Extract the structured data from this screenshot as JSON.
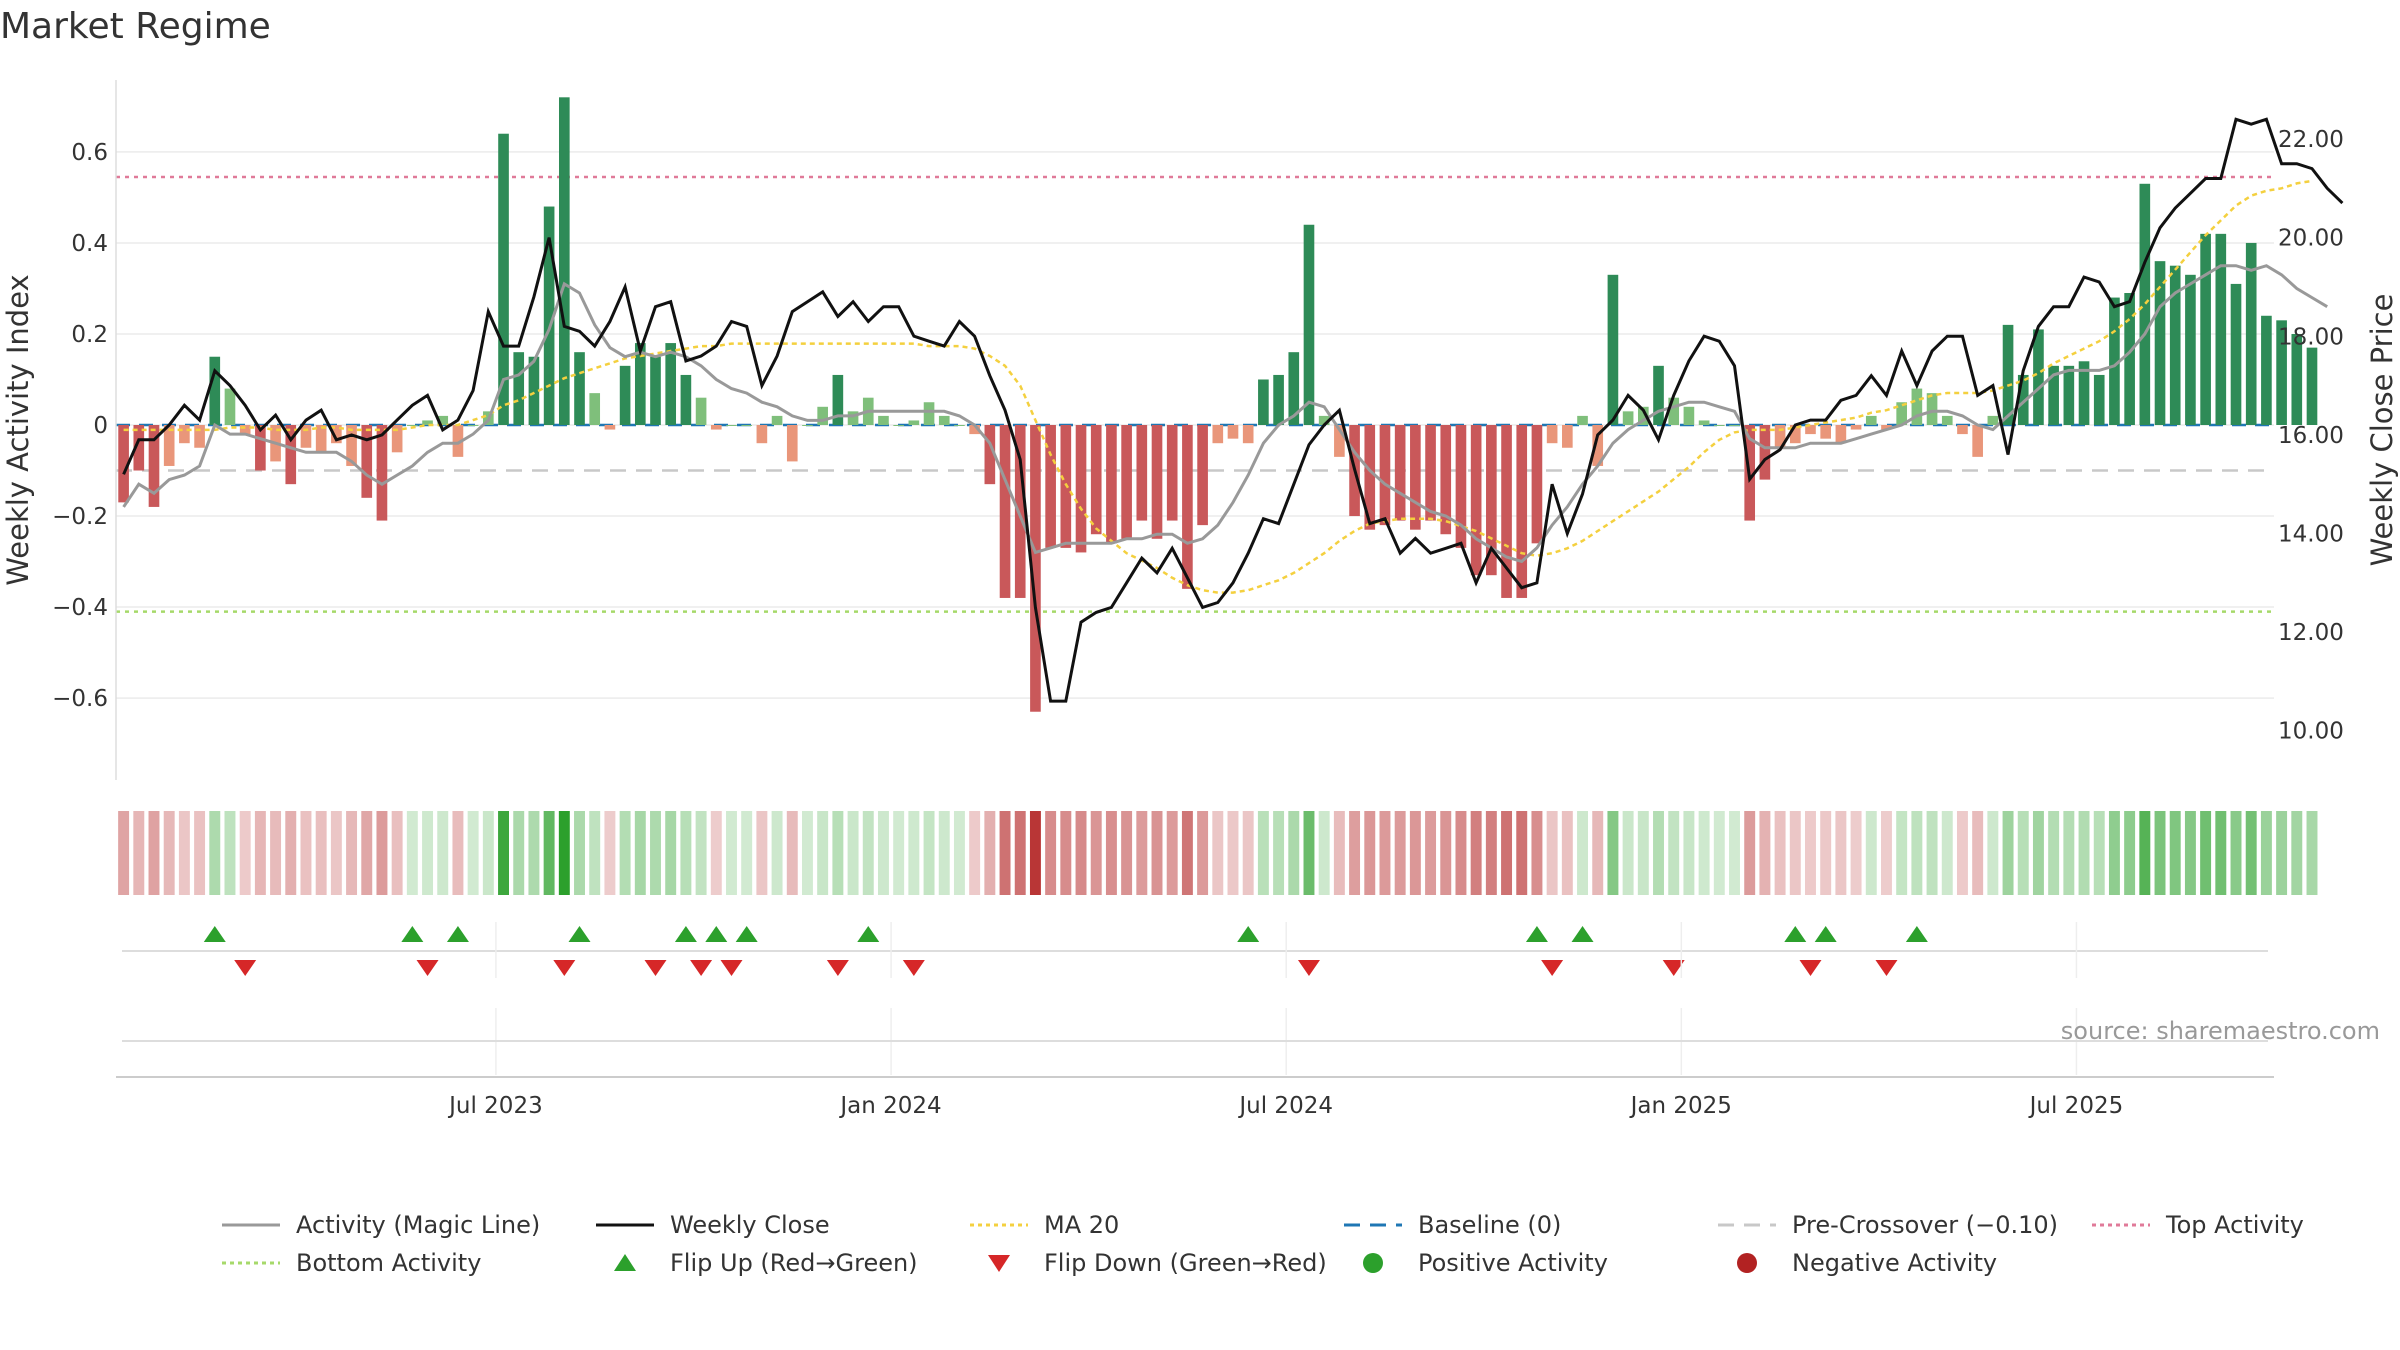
{
  "chart_data": {
    "type": "bar",
    "title": "Market Regime",
    "ylabel": "Weekly Activity Index",
    "y2label": "Weekly Close Price",
    "source": "source: sharemaestro.com",
    "ylim": [
      -0.78,
      0.78
    ],
    "y2lim": [
      9.0,
      23.4
    ],
    "y_ticks": [
      {
        "value": 0.6,
        "label": "0.6"
      },
      {
        "value": 0.4,
        "label": "0.4"
      },
      {
        "value": 0.2,
        "label": "0.2"
      },
      {
        "value": 0,
        "label": "0"
      },
      {
        "value": -0.2,
        "label": "−0.2"
      },
      {
        "value": -0.4,
        "label": "−0.4"
      },
      {
        "value": -0.6,
        "label": "−0.6"
      }
    ],
    "y2_ticks": [
      {
        "value": 22,
        "label": "22.00"
      },
      {
        "value": 20,
        "label": "20.00"
      },
      {
        "value": 18,
        "label": "18.00"
      },
      {
        "value": 16,
        "label": "16.00"
      },
      {
        "value": 14,
        "label": "14.00"
      },
      {
        "value": 12,
        "label": "12.00"
      },
      {
        "value": 10,
        "label": "10.00"
      }
    ],
    "x_ticks": [
      {
        "week": 25,
        "label": "Jul 2023"
      },
      {
        "week": 51,
        "label": "Jan 2024"
      },
      {
        "week": 77,
        "label": "Jul 2024"
      },
      {
        "week": 103,
        "label": "Jan 2025"
      },
      {
        "week": 129,
        "label": "Jul 2025"
      }
    ],
    "weeks_count": 142,
    "activity": [
      -0.17,
      -0.1,
      -0.18,
      -0.09,
      -0.04,
      -0.05,
      0.15,
      0.08,
      -0.02,
      -0.1,
      -0.08,
      -0.13,
      -0.05,
      -0.06,
      -0.04,
      -0.09,
      -0.16,
      -0.21,
      -0.06,
      0.0,
      0.01,
      0.02,
      -0.07,
      0.0,
      0.03,
      0.64,
      0.16,
      0.15,
      0.48,
      0.72,
      0.16,
      0.07,
      -0.01,
      0.13,
      0.18,
      0.15,
      0.18,
      0.11,
      0.06,
      -0.01,
      0.0,
      0.0,
      -0.04,
      0.02,
      -0.08,
      0.0,
      0.04,
      0.11,
      0.03,
      0.06,
      0.02,
      0.0,
      0.01,
      0.05,
      0.02,
      0.0,
      -0.02,
      -0.13,
      -0.38,
      -0.38,
      -0.63,
      -0.27,
      -0.27,
      -0.28,
      -0.24,
      -0.26,
      -0.25,
      -0.21,
      -0.25,
      -0.21,
      -0.36,
      -0.22,
      -0.04,
      -0.03,
      -0.04,
      0.1,
      0.11,
      0.16,
      0.44,
      0.02,
      -0.07,
      -0.2,
      -0.23,
      -0.22,
      -0.21,
      -0.23,
      -0.21,
      -0.24,
      -0.27,
      -0.33,
      -0.33,
      -0.38,
      -0.38,
      -0.26,
      -0.04,
      -0.05,
      0.02,
      -0.09,
      0.33,
      0.03,
      0.04,
      0.13,
      0.06,
      0.04,
      0.01,
      0.0,
      0.0,
      -0.21,
      -0.12,
      -0.05,
      -0.04,
      -0.02,
      -0.03,
      -0.04,
      -0.01,
      0.02,
      -0.01,
      0.05,
      0.08,
      0.07,
      0.02,
      -0.02,
      -0.07,
      0.02,
      0.22,
      0.11,
      0.21,
      0.13,
      0.13,
      0.14,
      0.11,
      0.28,
      0.29,
      0.53,
      0.36,
      0.35,
      0.33,
      0.42,
      0.42,
      0.31,
      0.4,
      0.24,
      0.23,
      0.2,
      0.17
    ],
    "magic_line": [
      -0.18,
      -0.13,
      -0.15,
      -0.12,
      -0.11,
      -0.09,
      0.0,
      -0.02,
      -0.02,
      -0.03,
      -0.04,
      -0.05,
      -0.06,
      -0.06,
      -0.06,
      -0.08,
      -0.11,
      -0.13,
      -0.11,
      -0.09,
      -0.06,
      -0.04,
      -0.04,
      -0.02,
      0.01,
      0.1,
      0.11,
      0.14,
      0.21,
      0.31,
      0.29,
      0.22,
      0.17,
      0.15,
      0.16,
      0.15,
      0.16,
      0.15,
      0.13,
      0.1,
      0.08,
      0.07,
      0.05,
      0.04,
      0.02,
      0.01,
      0.01,
      0.02,
      0.02,
      0.03,
      0.03,
      0.03,
      0.03,
      0.03,
      0.03,
      0.02,
      0.0,
      -0.04,
      -0.12,
      -0.2,
      -0.28,
      -0.27,
      -0.26,
      -0.26,
      -0.26,
      -0.26,
      -0.25,
      -0.25,
      -0.24,
      -0.24,
      -0.26,
      -0.25,
      -0.22,
      -0.17,
      -0.11,
      -0.04,
      0.0,
      0.02,
      0.05,
      0.04,
      -0.01,
      -0.06,
      -0.1,
      -0.13,
      -0.15,
      -0.17,
      -0.19,
      -0.2,
      -0.22,
      -0.25,
      -0.27,
      -0.29,
      -0.3,
      -0.27,
      -0.22,
      -0.18,
      -0.13,
      -0.09,
      -0.04,
      -0.01,
      0.01,
      0.03,
      0.04,
      0.05,
      0.05,
      0.04,
      0.03,
      -0.03,
      -0.05,
      -0.05,
      -0.05,
      -0.04,
      -0.04,
      -0.04,
      -0.03,
      -0.02,
      -0.01,
      0.0,
      0.02,
      0.03,
      0.03,
      0.02,
      0.0,
      -0.01,
      0.02,
      0.05,
      0.08,
      0.11,
      0.12,
      0.12,
      0.12,
      0.13,
      0.16,
      0.2,
      0.26,
      0.29,
      0.31,
      0.33,
      0.35,
      0.35,
      0.34,
      0.35,
      0.33,
      0.3,
      0.28,
      0.26
    ],
    "weekly_close": [
      15.2,
      15.9,
      15.9,
      16.2,
      16.6,
      16.3,
      17.3,
      17.0,
      16.6,
      16.1,
      16.4,
      15.9,
      16.3,
      16.5,
      15.9,
      16.0,
      15.9,
      16.0,
      16.3,
      16.6,
      16.8,
      16.1,
      16.3,
      16.9,
      18.5,
      17.8,
      17.8,
      18.8,
      20.0,
      18.2,
      18.1,
      17.8,
      18.3,
      19.0,
      17.7,
      18.6,
      18.7,
      17.5,
      17.6,
      17.8,
      18.3,
      18.2,
      17.0,
      17.6,
      18.5,
      18.7,
      18.9,
      18.4,
      18.7,
      18.3,
      18.6,
      18.6,
      18.0,
      17.9,
      17.8,
      18.3,
      18.0,
      17.2,
      16.5,
      15.5,
      12.5,
      10.6,
      10.6,
      12.2,
      12.4,
      12.5,
      13.0,
      13.5,
      13.2,
      13.7,
      13.1,
      12.5,
      12.6,
      13.0,
      13.6,
      14.3,
      14.2,
      15.0,
      15.8,
      16.2,
      16.5,
      15.3,
      14.2,
      14.3,
      13.6,
      13.9,
      13.6,
      13.7,
      13.8,
      13.0,
      13.7,
      13.3,
      12.9,
      13.0,
      15.0,
      14.0,
      14.8,
      16.0,
      16.3,
      16.8,
      16.5,
      15.9,
      16.8,
      17.5,
      18.0,
      17.9,
      17.4,
      15.1,
      15.5,
      15.7,
      16.2,
      16.3,
      16.3,
      16.7,
      16.8,
      17.2,
      16.8,
      17.7,
      17.0,
      17.7,
      18.0,
      18.0,
      16.8,
      17.0,
      15.6,
      17.3,
      18.2,
      18.6,
      18.6,
      19.2,
      19.1,
      18.6,
      18.7,
      19.5,
      20.2,
      20.6,
      20.9,
      21.2,
      21.2,
      22.4,
      22.3,
      22.4,
      21.5,
      21.5,
      21.4,
      21.0,
      20.7
    ],
    "ma20": [
      16.1,
      16.1,
      16.1,
      16.1,
      16.1,
      16.1,
      16.1,
      16.15,
      16.15,
      16.15,
      16.1,
      16.1,
      16.1,
      16.15,
      16.15,
      16.1,
      16.1,
      16.1,
      16.1,
      16.15,
      16.2,
      16.2,
      16.2,
      16.3,
      16.4,
      16.6,
      16.7,
      16.85,
      17.0,
      17.15,
      17.25,
      17.35,
      17.45,
      17.55,
      17.6,
      17.65,
      17.7,
      17.75,
      17.8,
      17.8,
      17.85,
      17.85,
      17.85,
      17.85,
      17.85,
      17.85,
      17.85,
      17.85,
      17.85,
      17.85,
      17.85,
      17.85,
      17.85,
      17.8,
      17.8,
      17.8,
      17.75,
      17.6,
      17.4,
      17.0,
      16.3,
      15.6,
      15.0,
      14.5,
      14.1,
      13.85,
      13.6,
      13.45,
      13.3,
      13.1,
      12.95,
      12.85,
      12.8,
      12.8,
      12.85,
      12.95,
      13.05,
      13.2,
      13.4,
      13.6,
      13.85,
      14.05,
      14.2,
      14.25,
      14.3,
      14.3,
      14.3,
      14.25,
      14.15,
      14.05,
      13.9,
      13.75,
      13.6,
      13.55,
      13.6,
      13.7,
      13.85,
      14.05,
      14.25,
      14.45,
      14.65,
      14.85,
      15.1,
      15.35,
      15.65,
      15.9,
      16.05,
      16.1,
      16.1,
      16.1,
      16.15,
      16.2,
      16.25,
      16.3,
      16.35,
      16.45,
      16.5,
      16.6,
      16.7,
      16.8,
      16.85,
      16.85,
      16.85,
      16.9,
      17.0,
      17.1,
      17.25,
      17.45,
      17.6,
      17.75,
      17.9,
      18.1,
      18.35,
      18.65,
      19.0,
      19.35,
      19.7,
      20.05,
      20.35,
      20.65,
      20.85,
      20.95,
      21.0,
      21.1,
      21.15
    ],
    "baseline": 0,
    "pre_crossover": -0.1,
    "top_activity": 0.545,
    "bottom_activity": -0.41,
    "flip_up_weeks": [
      6,
      19,
      22,
      30,
      37,
      39,
      41,
      49,
      74,
      93,
      96,
      110,
      112,
      118
    ],
    "flip_down_weeks": [
      8,
      20,
      29,
      35,
      38,
      40,
      47,
      52,
      78,
      94,
      102,
      111,
      116
    ],
    "colors": {
      "strong_pos": "#2e8b57",
      "weak_pos": "#7fbf7b",
      "strong_neg": "#c9585a",
      "weak_neg": "#e9967a",
      "magic_line": "#999999",
      "weekly_close": "#111111",
      "ma20": "#f4d03f",
      "baseline": "#1f77b4",
      "pre_crossover": "#c8c8c8",
      "top_activity": "#e07a99",
      "bottom_activity": "#a6d96a",
      "flip_up": "#2ca02c",
      "flip_down": "#d62728",
      "positive_dot": "#2ca02c",
      "negative_dot": "#b22222"
    },
    "legend": [
      {
        "label": "Activity (Magic Line)",
        "kind": "line",
        "color": "#999999"
      },
      {
        "label": "Weekly Close",
        "kind": "line",
        "color": "#111111"
      },
      {
        "label": "MA 20",
        "kind": "dotted",
        "color": "#f4d03f"
      },
      {
        "label": "Baseline (0)",
        "kind": "dashed",
        "color": "#1f77b4"
      },
      {
        "label": "Pre-Crossover (−0.10)",
        "kind": "dashed",
        "color": "#c8c8c8"
      },
      {
        "label": "Top Activity",
        "kind": "dotted",
        "color": "#e07a99"
      },
      {
        "label": "Bottom Activity",
        "kind": "dotted",
        "color": "#a6d96a"
      },
      {
        "label": "Flip Up (Red→Green)",
        "kind": "tri-up",
        "color": "#2ca02c"
      },
      {
        "label": "Flip Down (Green→Red)",
        "kind": "tri-down",
        "color": "#d62728"
      },
      {
        "label": "Positive Activity",
        "kind": "dot",
        "color": "#2ca02c"
      },
      {
        "label": "Negative Activity",
        "kind": "dot",
        "color": "#b22222"
      }
    ]
  }
}
